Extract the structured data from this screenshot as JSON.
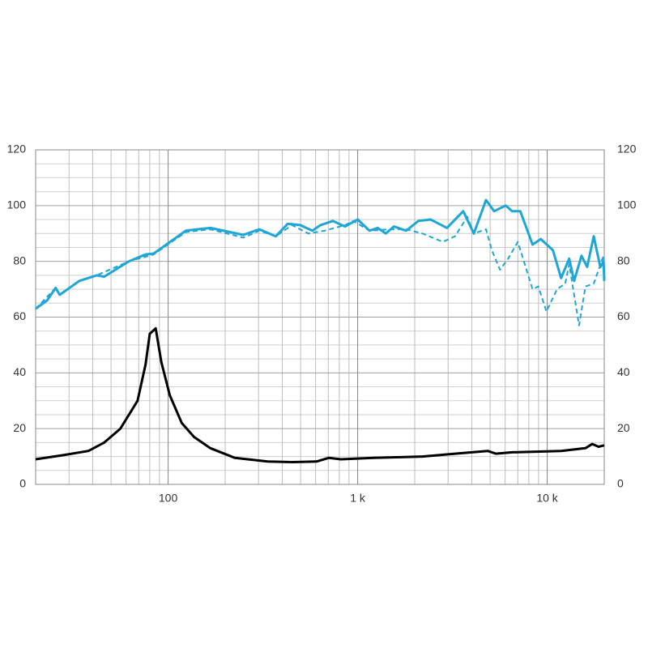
{
  "chart_data": {
    "type": "line",
    "log_x": true,
    "grid": true,
    "minor_grid": true,
    "xlim": [
      20,
      20000
    ],
    "xticks": [
      100,
      {
        "value": 1000,
        "label": "1 k"
      },
      {
        "value": 10000,
        "label": "10 k"
      }
    ],
    "ylim": [
      0,
      120
    ],
    "yticks": [
      0,
      20,
      40,
      60,
      80,
      100,
      120
    ],
    "y2lim": [
      0,
      120
    ],
    "y2ticks": [
      0,
      20,
      40,
      60,
      80,
      100,
      120
    ],
    "series": [
      {
        "color": "#1ea7d6",
        "dashed": false,
        "x": [
          20,
          23,
          25.5,
          26.8,
          34,
          42,
          46,
          62,
          76,
          84,
          124,
          167,
          249,
          303,
          370,
          428,
          497,
          577,
          637,
          739,
          858,
          1000,
          1155,
          1275,
          1407,
          1553,
          1803,
          2091,
          2427,
          2958,
          3606,
          4102,
          4755,
          5248,
          6039,
          6531,
          7211,
          8373,
          9247,
          10715,
          11837,
          13063,
          13870,
          15171,
          16250,
          17590,
          19055,
          19822,
          20000
        ],
        "values": [
          63,
          66,
          70.5,
          68,
          73,
          75,
          74.5,
          80,
          82.5,
          82.8,
          91,
          92,
          89.5,
          91.5,
          89,
          93.5,
          93,
          91,
          93,
          94.5,
          92.5,
          95,
          91,
          92,
          90,
          92.5,
          91,
          94.5,
          95,
          92,
          98,
          90,
          102,
          98,
          100,
          98,
          98,
          86,
          88,
          84,
          74,
          81,
          73,
          82,
          78,
          89,
          78,
          80,
          73
        ]
      },
      {
        "color": "#1ea7d6",
        "dashed": true,
        "x": [
          20,
          25.5,
          26.8,
          34,
          42,
          62,
          84,
          124,
          167,
          249,
          303,
          370,
          451,
          549,
          670,
          858,
          947,
          1155,
          1479,
          1803,
          2198,
          2814,
          3266,
          3786,
          4102,
          4755,
          5101,
          5636,
          6223,
          6998,
          8373,
          8974,
          9908,
          11270,
          12447,
          13063,
          14723,
          15922,
          17590,
          19822,
          20000
        ],
        "values": [
          63,
          70.5,
          68,
          73,
          75,
          80,
          82.5,
          90.5,
          91.5,
          88.5,
          91,
          89,
          93,
          90,
          91,
          93,
          94.5,
          91,
          91.5,
          91.5,
          90,
          87,
          89,
          96,
          90,
          91.5,
          84,
          77,
          81,
          87,
          70,
          71,
          62,
          70,
          72,
          79,
          57,
          71,
          72,
          82,
          78
        ]
      },
      {
        "color": "#000000",
        "dashed": false,
        "x": [
          20,
          28,
          38,
          46,
          56,
          69,
          76,
          80,
          86,
          92,
          102,
          118,
          137,
          167,
          225,
          335,
          451,
          607,
          703,
          816,
          1213,
          2198,
          3266,
          4853,
          5357,
          6531,
          11837,
          15922,
          17265,
          18658,
          20000
        ],
        "values": [
          9,
          10.5,
          12,
          15,
          20,
          30,
          43,
          54,
          56,
          44,
          32,
          22,
          17,
          13,
          9.5,
          8.2,
          8,
          8.2,
          9.5,
          9,
          9.5,
          10,
          11,
          12,
          11,
          11.5,
          12,
          13,
          14.5,
          13.5,
          14
        ]
      }
    ]
  }
}
